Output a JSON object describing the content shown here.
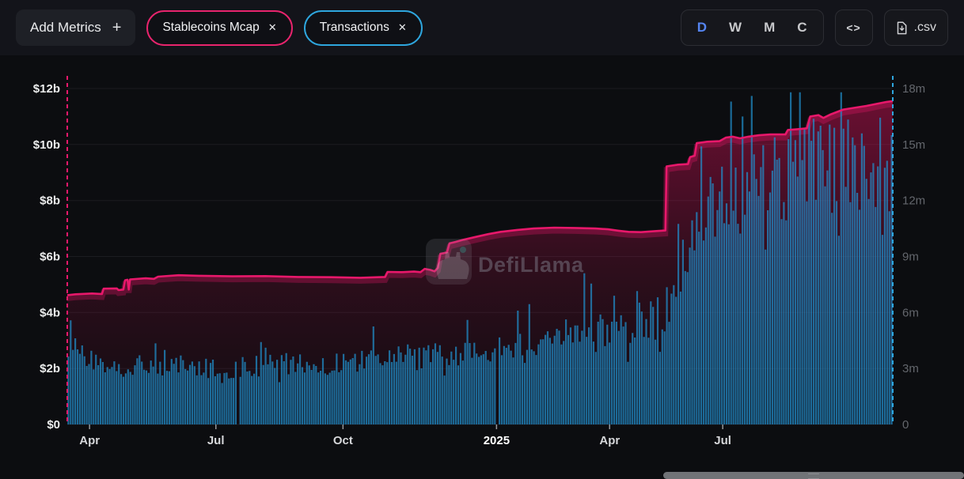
{
  "toolbar": {
    "add_metrics": {
      "label": "Add Metrics",
      "icon": "+"
    },
    "metrics": [
      {
        "label": "Stablecoins Mcap",
        "close_icon": "✕",
        "color": "#e8246d"
      },
      {
        "label": "Transactions",
        "close_icon": "✕",
        "color": "#2ea6de"
      }
    ],
    "interval_options": [
      {
        "label": "D",
        "active": true
      },
      {
        "label": "W",
        "active": false
      },
      {
        "label": "M",
        "active": false
      },
      {
        "label": "C",
        "active": false
      }
    ],
    "active_interval_color": "#5585f2",
    "embed_icon": "<>",
    "csv_button": {
      "label": ".csv",
      "icon": "file-download-icon"
    }
  },
  "chart_data": {
    "type": "mixed",
    "watermark": "DefiLlama",
    "background": "#0c0d10",
    "grid_color": "#1b1c20",
    "x_axis": {
      "ticks": [
        {
          "label": "Apr",
          "f": 0.027,
          "bold": false
        },
        {
          "label": "Jul",
          "f": 0.18,
          "bold": false
        },
        {
          "label": "Oct",
          "f": 0.334,
          "bold": false
        },
        {
          "label": "2025",
          "f": 0.52,
          "bold": true
        },
        {
          "label": "Apr",
          "f": 0.657,
          "bold": false
        },
        {
          "label": "Jul",
          "f": 0.794,
          "bold": false
        }
      ]
    },
    "left_axis": {
      "labels": [
        "$12b",
        "$10b",
        "$8b",
        "$6b",
        "$4b",
        "$2b",
        "$0"
      ],
      "values": [
        12,
        10,
        8,
        6,
        4,
        2,
        0
      ],
      "max": 12,
      "min": 0,
      "unit": "USD billions",
      "color": "#eceded"
    },
    "right_axis": {
      "labels": [
        "18m",
        "15m",
        "12m",
        "9m",
        "6m",
        "3m",
        "0"
      ],
      "values": [
        18,
        15,
        12,
        9,
        6,
        3,
        0
      ],
      "max": 18,
      "min": 0,
      "unit": "millions",
      "color": "#63666c"
    },
    "series": [
      {
        "name": "Stablecoins Mcap",
        "type": "area-line",
        "yAxis": "left",
        "color": "#e8186b",
        "unit": "$b",
        "points_f_value": [
          [
            0.0,
            4.62
          ],
          [
            0.01,
            4.65
          ],
          [
            0.03,
            4.68
          ],
          [
            0.042,
            4.66
          ],
          [
            0.044,
            4.85
          ],
          [
            0.06,
            4.86
          ],
          [
            0.062,
            4.8
          ],
          [
            0.068,
            4.82
          ],
          [
            0.07,
            5.15
          ],
          [
            0.073,
            5.17
          ],
          [
            0.0745,
            4.82
          ],
          [
            0.076,
            5.18
          ],
          [
            0.095,
            5.22
          ],
          [
            0.105,
            5.2
          ],
          [
            0.11,
            5.28
          ],
          [
            0.135,
            5.33
          ],
          [
            0.16,
            5.31
          ],
          [
            0.2,
            5.29
          ],
          [
            0.24,
            5.3
          ],
          [
            0.28,
            5.27
          ],
          [
            0.32,
            5.26
          ],
          [
            0.355,
            5.24
          ],
          [
            0.376,
            5.26
          ],
          [
            0.385,
            5.27
          ],
          [
            0.388,
            5.45
          ],
          [
            0.405,
            5.44
          ],
          [
            0.42,
            5.46
          ],
          [
            0.428,
            5.44
          ],
          [
            0.433,
            5.56
          ],
          [
            0.44,
            5.52
          ],
          [
            0.445,
            5.47
          ],
          [
            0.449,
            5.6
          ],
          [
            0.452,
            6.1
          ],
          [
            0.456,
            6.12
          ],
          [
            0.46,
            6.15
          ],
          [
            0.463,
            6.47
          ],
          [
            0.47,
            6.52
          ],
          [
            0.48,
            6.6
          ],
          [
            0.495,
            6.7
          ],
          [
            0.51,
            6.8
          ],
          [
            0.525,
            6.88
          ],
          [
            0.545,
            6.95
          ],
          [
            0.565,
            7.0
          ],
          [
            0.59,
            7.03
          ],
          [
            0.615,
            7.02
          ],
          [
            0.64,
            7.0
          ],
          [
            0.655,
            6.97
          ],
          [
            0.668,
            6.92
          ],
          [
            0.68,
            6.88
          ],
          [
            0.695,
            6.87
          ],
          [
            0.71,
            6.9
          ],
          [
            0.7245,
            6.93
          ],
          [
            0.726,
            9.22
          ],
          [
            0.74,
            9.28
          ],
          [
            0.752,
            9.3
          ],
          [
            0.7545,
            9.55
          ],
          [
            0.76,
            9.6
          ],
          [
            0.7625,
            10.05
          ],
          [
            0.775,
            10.1
          ],
          [
            0.79,
            10.12
          ],
          [
            0.798,
            10.25
          ],
          [
            0.806,
            10.28
          ],
          [
            0.815,
            10.22
          ],
          [
            0.825,
            10.28
          ],
          [
            0.838,
            10.33
          ],
          [
            0.852,
            10.36
          ],
          [
            0.87,
            10.36
          ],
          [
            0.873,
            10.52
          ],
          [
            0.885,
            10.55
          ],
          [
            0.896,
            10.58
          ],
          [
            0.9,
            11.0
          ],
          [
            0.91,
            11.05
          ],
          [
            0.916,
            10.95
          ],
          [
            0.925,
            11.08
          ],
          [
            0.94,
            11.25
          ],
          [
            0.955,
            11.32
          ],
          [
            0.968,
            11.38
          ],
          [
            0.98,
            11.45
          ],
          [
            0.992,
            11.52
          ],
          [
            1.0,
            11.55
          ]
        ]
      },
      {
        "name": "Transactions",
        "type": "bar",
        "yAxis": "right",
        "color": "#2090cd",
        "unit": "m",
        "envelope_f_value": [
          [
            0.0,
            4.35
          ],
          [
            0.015,
            4.1
          ],
          [
            0.04,
            3.4
          ],
          [
            0.08,
            3.15
          ],
          [
            0.12,
            3.1
          ],
          [
            0.16,
            3.15
          ],
          [
            0.2,
            3.05
          ],
          [
            0.24,
            3.2
          ],
          [
            0.28,
            3.3
          ],
          [
            0.32,
            3.35
          ],
          [
            0.36,
            3.45
          ],
          [
            0.4,
            3.55
          ],
          [
            0.44,
            3.65
          ],
          [
            0.48,
            3.85
          ],
          [
            0.52,
            4.0
          ],
          [
            0.55,
            4.15
          ],
          [
            0.58,
            4.35
          ],
          [
            0.61,
            4.6
          ],
          [
            0.64,
            4.9
          ],
          [
            0.67,
            5.1
          ],
          [
            0.7,
            5.3
          ],
          [
            0.72,
            5.8
          ],
          [
            0.735,
            7.2
          ],
          [
            0.75,
            8.8
          ],
          [
            0.765,
            9.8
          ],
          [
            0.78,
            11.2
          ],
          [
            0.8,
            12.8
          ],
          [
            0.82,
            13.4
          ],
          [
            0.845,
            12.9
          ],
          [
            0.87,
            13.3
          ],
          [
            0.9,
            13.8
          ],
          [
            0.93,
            14.0
          ],
          [
            0.96,
            14.1
          ],
          [
            0.985,
            14.3
          ],
          [
            1.0,
            13.8
          ]
        ],
        "spikes_f_value": [
          [
            0.372,
            5.25
          ],
          [
            0.486,
            5.6
          ],
          [
            0.545,
            6.1
          ],
          [
            0.56,
            6.45
          ],
          [
            0.625,
            8.1
          ],
          [
            0.636,
            7.55
          ],
          [
            0.663,
            6.9
          ],
          [
            0.69,
            7.15
          ],
          [
            0.706,
            6.6
          ],
          [
            0.768,
            14.9
          ],
          [
            0.805,
            17.3
          ],
          [
            0.818,
            16.5
          ],
          [
            0.828,
            17.6
          ],
          [
            0.9,
            15.2
          ],
          [
            0.93,
            15.9
          ],
          [
            0.963,
            15.6
          ],
          [
            0.999,
            15.5
          ]
        ],
        "gaps_f": [
          0.208,
          0.522
        ]
      }
    ],
    "boundary_lines": [
      {
        "side": "left",
        "color": "#e8186b",
        "style": "dashed"
      },
      {
        "side": "right",
        "color": "#2ea6de",
        "style": "dashed"
      }
    ]
  }
}
